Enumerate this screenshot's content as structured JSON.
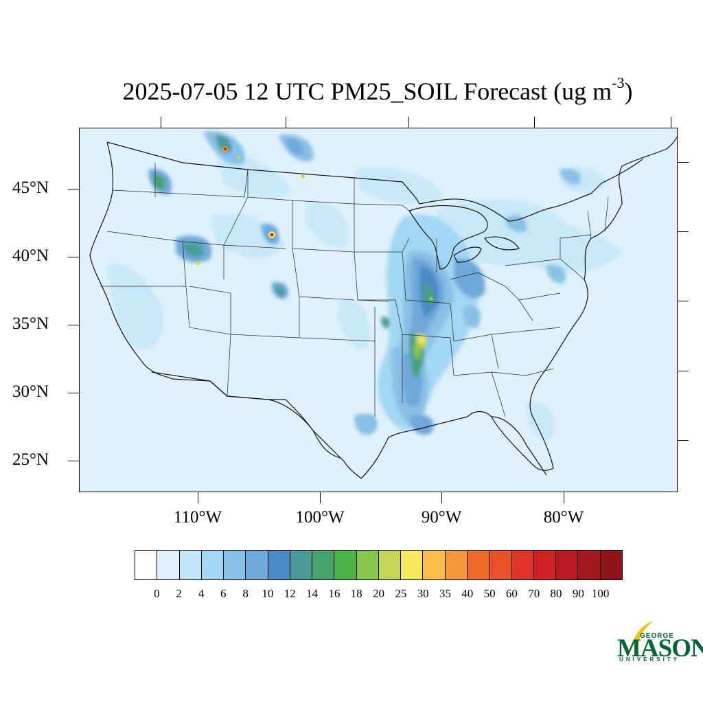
{
  "title": {
    "text": "2025-07-05 12 UTC PM25_SOIL Forecast (ug m",
    "superscript": "-3",
    "suffix": ")"
  },
  "map": {
    "background_color": "#dff1fb",
    "lat_labels": [
      "45°N",
      "40°N",
      "35°N",
      "30°N",
      "25°N"
    ],
    "lon_labels": [
      "110°W",
      "100°W",
      "90°W",
      "80°W"
    ]
  },
  "colorbar": {
    "colors": [
      "#ffffff",
      "#dff1fb",
      "#c0e6f7",
      "#a2d8f3",
      "#88c1e5",
      "#6ea9da",
      "#4b8ac6",
      "#4a9b98",
      "#45a56c",
      "#4cb447",
      "#89c64c",
      "#c5d656",
      "#f7e85d",
      "#f8bf4a",
      "#f5963b",
      "#ef6b2a",
      "#e8512c",
      "#df3427",
      "#d11f26",
      "#b91b24",
      "#a4191e",
      "#8d1518"
    ],
    "labels": [
      "0",
      "2",
      "4",
      "6",
      "8",
      "10",
      "12",
      "14",
      "16",
      "18",
      "20",
      "25",
      "30",
      "35",
      "40",
      "50",
      "60",
      "70",
      "80",
      "90",
      "100"
    ]
  },
  "logo": {
    "line1": "GEORGE",
    "line2": "MASON",
    "line3": "UNIVERSITY",
    "color": "#006633",
    "accent": "#f2c200"
  }
}
